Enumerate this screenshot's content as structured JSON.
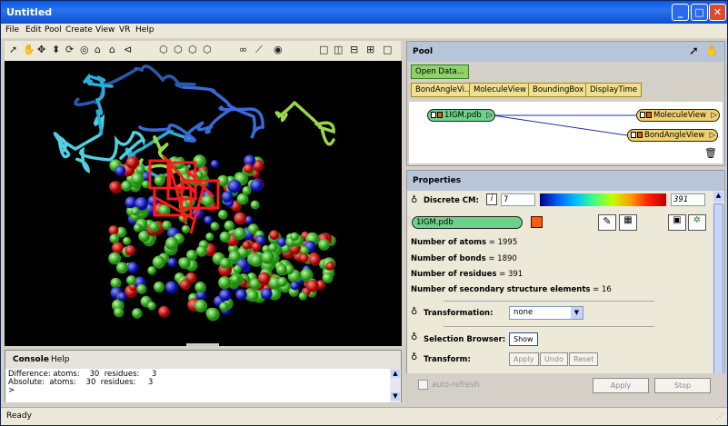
{
  "window": {
    "title": "Untitled"
  },
  "menu": [
    "File",
    "Edit",
    "Pool",
    "Create",
    "View",
    "VR",
    "Help"
  ],
  "pool": {
    "title": "Pool",
    "open_data": "Open Data...",
    "modules": [
      "BondAngleVi...",
      "MoleculeView",
      "BoundingBox",
      "DisplayTime"
    ],
    "nodes": {
      "source": "1IGM.pdb",
      "target1": "MoleculeView",
      "target2": "BondAngleView"
    }
  },
  "properties": {
    "title": "Properties",
    "discrete_label": "Discrete CM:",
    "cm_min": "7",
    "cm_max": "391",
    "data_port": "1IGM.pdb",
    "stats": [
      {
        "label": "Number of atoms",
        "value": "= 1995"
      },
      {
        "label": "Number of bonds",
        "value": "= 1890"
      },
      {
        "label": "Number of residues",
        "value": "= 391"
      },
      {
        "label": "Number of secondary structure elements",
        "value": "= 16"
      }
    ],
    "transformation_label": "Transformation:",
    "transformation_value": "none",
    "selection_label": "Selection Browser:",
    "show_label": "Show",
    "transform_label": "Transform:",
    "apply_small": "Apply",
    "undo": "Undo",
    "reset": "Reset",
    "autorefresh": "auto-refresh",
    "apply": "Apply",
    "stop": "Stop"
  },
  "console": {
    "tab_console": "Console",
    "tab_help": "Help",
    "lines": [
      "Difference: atoms:    30  residues:     3",
      "Absolute:  atoms:    30  residues:     3",
      ">"
    ]
  },
  "status": "Ready"
}
